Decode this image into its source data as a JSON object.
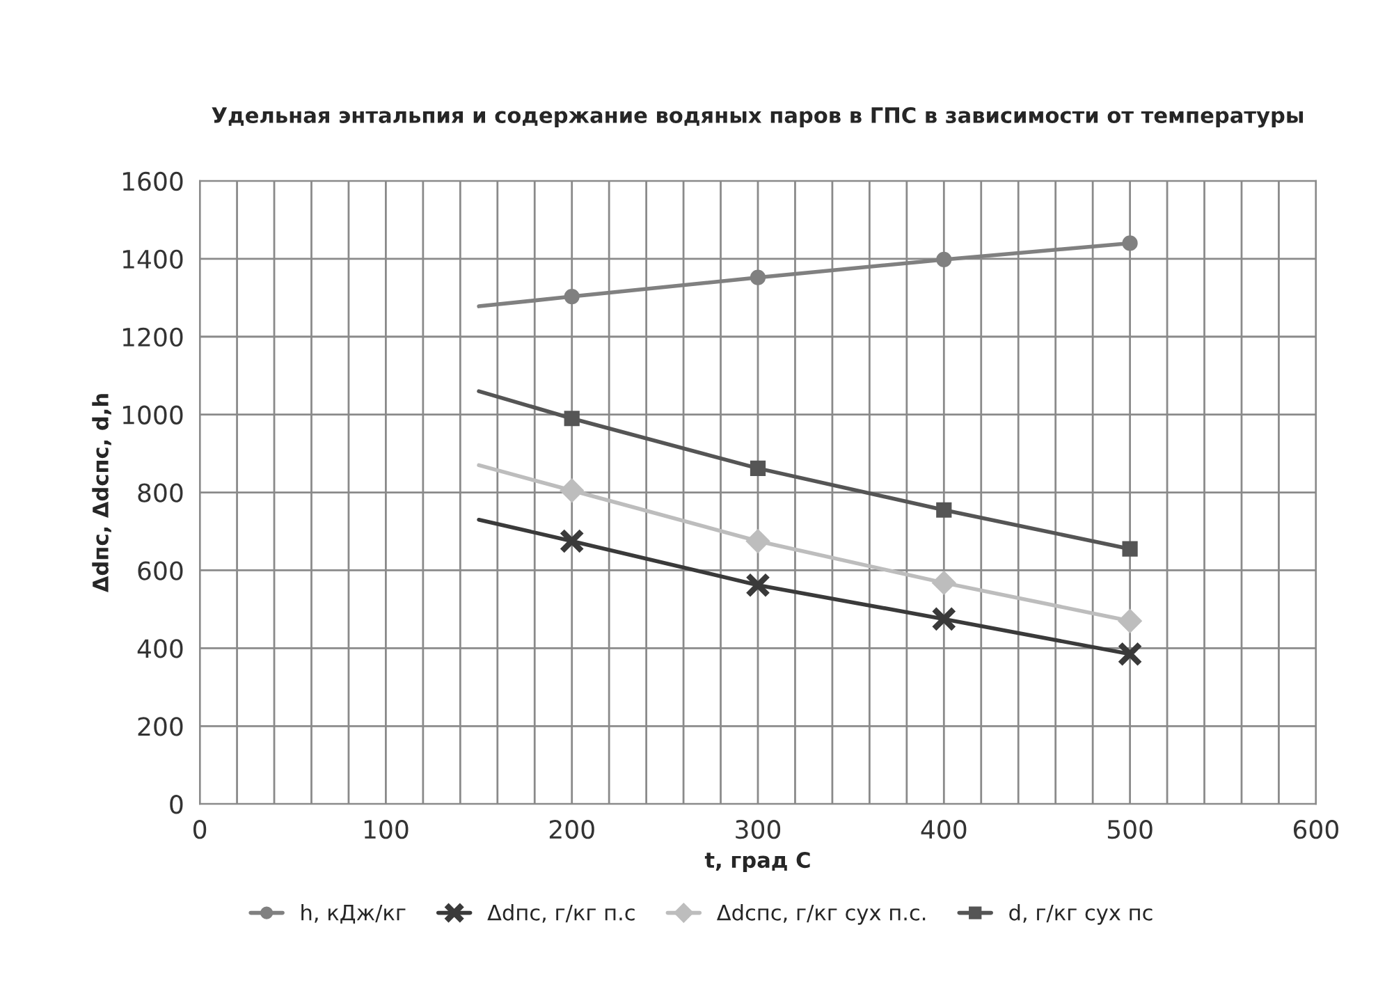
{
  "chart_data": {
    "type": "line",
    "title": "Удельная энтальпия и содержание водяных паров в ГПС в зависимости от температуры",
    "xlabel": "t, град С",
    "ylabel": "Δdпс, Δdcпс, d,h",
    "xlim": [
      0,
      600
    ],
    "ylim": [
      0,
      1600
    ],
    "xticks": [
      0,
      {
        "value": 20,
        "label": null
      },
      {
        "value": 40,
        "label": null
      },
      {
        "value": 60,
        "label": null
      },
      {
        "value": 80,
        "label": null
      },
      100,
      {
        "value": 120,
        "label": null
      },
      {
        "value": 140,
        "label": null
      },
      {
        "value": 160,
        "label": null
      },
      {
        "value": 180,
        "label": null
      },
      200,
      {
        "value": 220,
        "label": null
      },
      {
        "value": 240,
        "label": null
      },
      {
        "value": 260,
        "label": null
      },
      {
        "value": 280,
        "label": null
      },
      300,
      {
        "value": 320,
        "label": null
      },
      {
        "value": 340,
        "label": null
      },
      {
        "value": 360,
        "label": null
      },
      {
        "value": 380,
        "label": null
      },
      400,
      {
        "value": 420,
        "label": null
      },
      {
        "value": 440,
        "label": null
      },
      {
        "value": 460,
        "label": null
      },
      {
        "value": 480,
        "label": null
      },
      500,
      {
        "value": 520,
        "label": null
      },
      {
        "value": 540,
        "label": null
      },
      {
        "value": 560,
        "label": null
      },
      {
        "value": 580,
        "label": null
      },
      600
    ],
    "yticks": [
      0,
      200,
      400,
      600,
      800,
      1000,
      1200,
      1400,
      1600
    ],
    "grid": true,
    "legend": "bottom",
    "series": [
      {
        "color": "#808080",
        "marker": "none",
        "x": [
          150,
          200,
          300,
          400,
          500
        ],
        "values": [
          1278,
          1303,
          1352,
          1398,
          1440
        ]
      },
      {
        "color": "#3a3a3a",
        "marker": "none",
        "x": [
          150,
          200,
          300,
          400,
          500
        ],
        "values": [
          730,
          675,
          562,
          475,
          385
        ]
      },
      {
        "color": "#bdbdbd",
        "marker": "none",
        "x": [
          150,
          200,
          300,
          400,
          500
        ],
        "values": [
          870,
          805,
          675,
          568,
          470
        ]
      },
      {
        "color": "#555555",
        "marker": "none",
        "x": [
          150,
          200,
          300,
          400,
          500
        ],
        "values": [
          1060,
          990,
          862,
          755,
          655
        ]
      },
      {
        "type": "scatter",
        "name": "h, кДж/кг",
        "color": "#808080",
        "marker": "circle",
        "x": [
          200,
          300,
          400,
          500
        ],
        "values": [
          1303,
          1352,
          1398,
          1440
        ]
      },
      {
        "type": "scatter",
        "name": "Δdпс, г/кг п.с",
        "color": "#3a3a3a",
        "marker": "cross",
        "x": [
          200,
          300,
          400,
          500
        ],
        "values": [
          675,
          562,
          475,
          385
        ]
      },
      {
        "type": "scatter",
        "name": "Δdcпс, г/кг сух п.с.",
        "color": "#bdbdbd",
        "marker": "diamond",
        "x": [
          200,
          300,
          400,
          500
        ],
        "values": [
          805,
          675,
          568,
          470
        ]
      },
      {
        "type": "scatter",
        "name": "d, г/кг сух пс",
        "color": "#555555",
        "marker": "square",
        "x": [
          200,
          300,
          400,
          500
        ],
        "values": [
          990,
          862,
          755,
          655
        ]
      }
    ]
  }
}
